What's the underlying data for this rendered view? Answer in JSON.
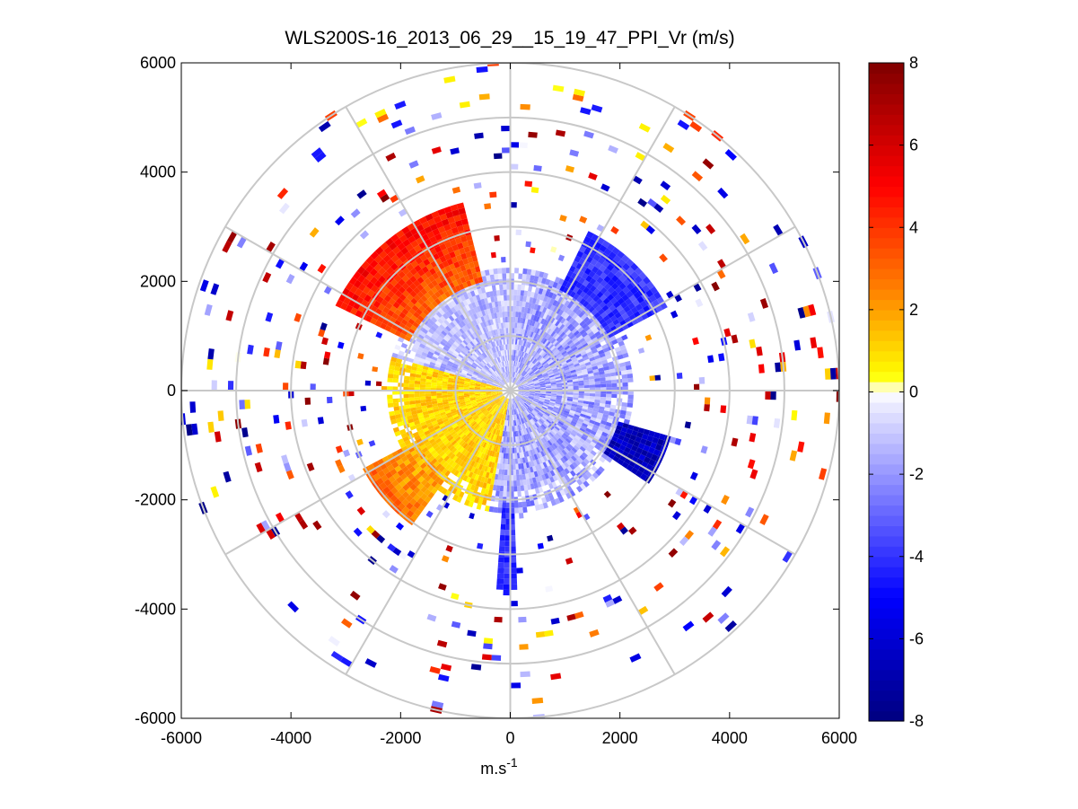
{
  "chart_data": {
    "type": "heatmap",
    "subtype": "polar-ppi",
    "title": "WLS200S-16_2013_06_29__15_19_47_PPI_Vr (m/s)",
    "xlabel": "m.s",
    "xlabel_superscript": "-1",
    "xlim": [
      -6000,
      6000
    ],
    "ylim": [
      -6000,
      6000
    ],
    "x_ticks": [
      -6000,
      -4000,
      -2000,
      0,
      2000,
      4000,
      6000
    ],
    "y_ticks": [
      -6000,
      -4000,
      -2000,
      0,
      2000,
      4000,
      6000
    ],
    "x_tick_labels": [
      "-6000",
      "-4000",
      "-2000",
      "0",
      "2000",
      "4000",
      "6000"
    ],
    "y_tick_labels": [
      "-6000",
      "-4000",
      "-2000",
      "0",
      "2000",
      "4000",
      "6000"
    ],
    "range_rings": [
      1000,
      2000,
      3000,
      4000,
      5000,
      6000
    ],
    "spoke_angles_deg": [
      0,
      30,
      60,
      90,
      120,
      150,
      180,
      210,
      240,
      270,
      300,
      330
    ],
    "max_range": 6000,
    "color_limits": [
      -8,
      8
    ],
    "colorbar_ticks": [
      -8,
      -6,
      -4,
      -2,
      0,
      2,
      4,
      6,
      8
    ],
    "colorbar_tick_labels": [
      "-8",
      "-6",
      "-4",
      "-2",
      "0",
      "2",
      "4",
      "6",
      "8"
    ],
    "colormap_stops": [
      "#00007f",
      "#0000ff",
      "#e6e6ff",
      "#ffffff",
      "#ffff00",
      "#ff8000",
      "#ff0000",
      "#7f0000"
    ],
    "sectors": [
      {
        "az_from": 295,
        "az_to": 345,
        "r_from": 2000,
        "r_to": 3500,
        "velocity": 5
      },
      {
        "az_from": 215,
        "az_to": 240,
        "r_from": 1800,
        "r_to": 3000,
        "velocity": 3
      },
      {
        "az_from": 25,
        "az_to": 60,
        "r_from": 2000,
        "r_to": 3200,
        "velocity": -4
      },
      {
        "az_from": 105,
        "az_to": 122,
        "r_from": 2000,
        "r_to": 3000,
        "velocity": -6.5
      },
      {
        "az_from": 177,
        "az_to": 183,
        "r_from": 2000,
        "r_to": 3600,
        "velocity": -4
      }
    ]
  }
}
